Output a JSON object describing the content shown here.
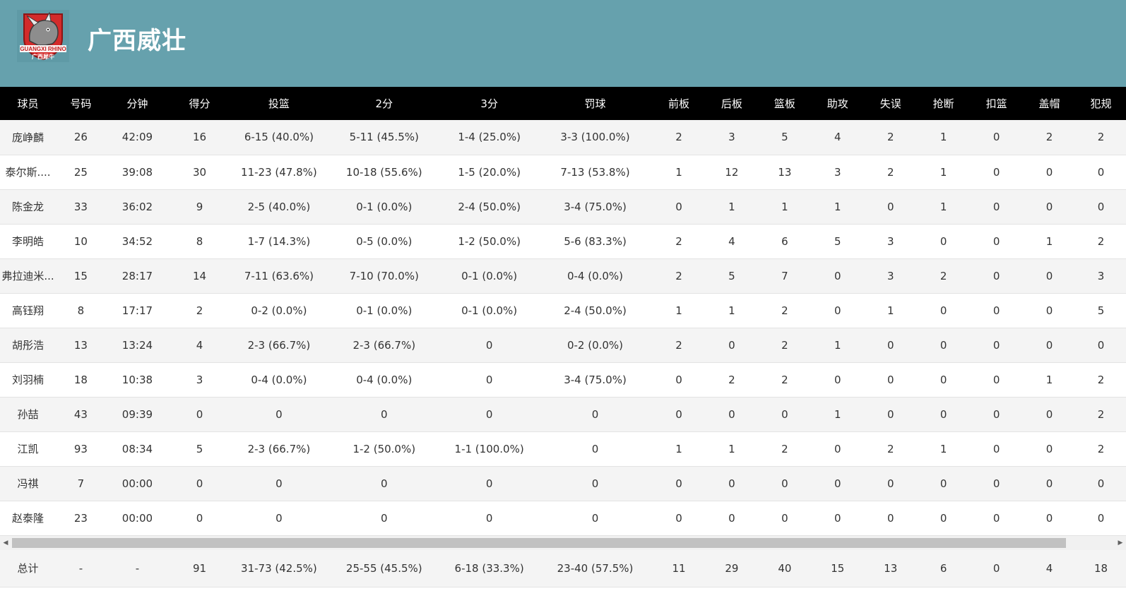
{
  "team": {
    "name": "广西威壮",
    "logo_text": "GUANGXI RHINO 广西犀牛",
    "logo_icon": "rhino-icon"
  },
  "colors": {
    "header_bg": "#66a1ad",
    "table_head_bg": "#000000",
    "logo_red": "#d32b2b"
  },
  "columns": [
    "球员",
    "号码",
    "分钟",
    "得分",
    "投篮",
    "2分",
    "3分",
    "罚球",
    "前板",
    "后板",
    "篮板",
    "助攻",
    "失误",
    "抢断",
    "扣篮",
    "盖帽",
    "犯规"
  ],
  "players": [
    {
      "cells": [
        "庞峥麟",
        "26",
        "42:09",
        "16",
        "6-15 (40.0%)",
        "5-11 (45.5%)",
        "1-4 (25.0%)",
        "3-3 (100.0%)",
        "2",
        "3",
        "5",
        "4",
        "2",
        "1",
        "0",
        "2",
        "2"
      ]
    },
    {
      "cells": [
        "泰尔斯....",
        "25",
        "39:08",
        "30",
        "11-23 (47.8%)",
        "10-18 (55.6%)",
        "1-5 (20.0%)",
        "7-13 (53.8%)",
        "1",
        "12",
        "13",
        "3",
        "2",
        "1",
        "0",
        "0",
        "0"
      ]
    },
    {
      "cells": [
        "陈金龙",
        "33",
        "36:02",
        "9",
        "2-5 (40.0%)",
        "0-1 (0.0%)",
        "2-4 (50.0%)",
        "3-4 (75.0%)",
        "0",
        "1",
        "1",
        "1",
        "0",
        "1",
        "0",
        "0",
        "0"
      ]
    },
    {
      "cells": [
        "李明皓",
        "10",
        "34:52",
        "8",
        "1-7 (14.3%)",
        "0-5 (0.0%)",
        "1-2 (50.0%)",
        "5-6 (83.3%)",
        "2",
        "4",
        "6",
        "5",
        "3",
        "0",
        "0",
        "1",
        "2"
      ]
    },
    {
      "cells": [
        "弗拉迪米...",
        "15",
        "28:17",
        "14",
        "7-11 (63.6%)",
        "7-10 (70.0%)",
        "0-1 (0.0%)",
        "0-4 (0.0%)",
        "2",
        "5",
        "7",
        "0",
        "3",
        "2",
        "0",
        "0",
        "3"
      ]
    },
    {
      "cells": [
        "高钰翔",
        "8",
        "17:17",
        "2",
        "0-2 (0.0%)",
        "0-1 (0.0%)",
        "0-1 (0.0%)",
        "2-4 (50.0%)",
        "1",
        "1",
        "2",
        "0",
        "1",
        "0",
        "0",
        "0",
        "5"
      ]
    },
    {
      "cells": [
        "胡彤浩",
        "13",
        "13:24",
        "4",
        "2-3 (66.7%)",
        "2-3 (66.7%)",
        "0",
        "0-2 (0.0%)",
        "2",
        "0",
        "2",
        "1",
        "0",
        "0",
        "0",
        "0",
        "0"
      ]
    },
    {
      "cells": [
        "刘羽楠",
        "18",
        "10:38",
        "3",
        "0-4 (0.0%)",
        "0-4 (0.0%)",
        "0",
        "3-4 (75.0%)",
        "0",
        "2",
        "2",
        "0",
        "0",
        "0",
        "0",
        "1",
        "2"
      ]
    },
    {
      "cells": [
        "孙喆",
        "43",
        "09:39",
        "0",
        "0",
        "0",
        "0",
        "0",
        "0",
        "0",
        "0",
        "1",
        "0",
        "0",
        "0",
        "0",
        "2"
      ]
    },
    {
      "cells": [
        "江凯",
        "93",
        "08:34",
        "5",
        "2-3 (66.7%)",
        "1-2 (50.0%)",
        "1-1 (100.0%)",
        "0",
        "1",
        "1",
        "2",
        "0",
        "2",
        "1",
        "0",
        "0",
        "2"
      ]
    },
    {
      "cells": [
        "冯祺",
        "7",
        "00:00",
        "0",
        "0",
        "0",
        "0",
        "0",
        "0",
        "0",
        "0",
        "0",
        "0",
        "0",
        "0",
        "0",
        "0"
      ]
    },
    {
      "cells": [
        "赵泰隆",
        "23",
        "00:00",
        "0",
        "0",
        "0",
        "0",
        "0",
        "0",
        "0",
        "0",
        "0",
        "0",
        "0",
        "0",
        "0",
        "0"
      ]
    }
  ],
  "totals": [
    "总计",
    "-",
    "-",
    "91",
    "31-73 (42.5%)",
    "25-55 (45.5%)",
    "6-18 (33.3%)",
    "23-40 (57.5%)",
    "11",
    "29",
    "40",
    "15",
    "13",
    "6",
    "0",
    "4",
    "18"
  ],
  "scrollbar": {
    "left_arrow_icon": "triangle-left-icon",
    "right_arrow_icon": "triangle-right-icon",
    "left_glyph": "◀",
    "right_glyph": "▶"
  }
}
